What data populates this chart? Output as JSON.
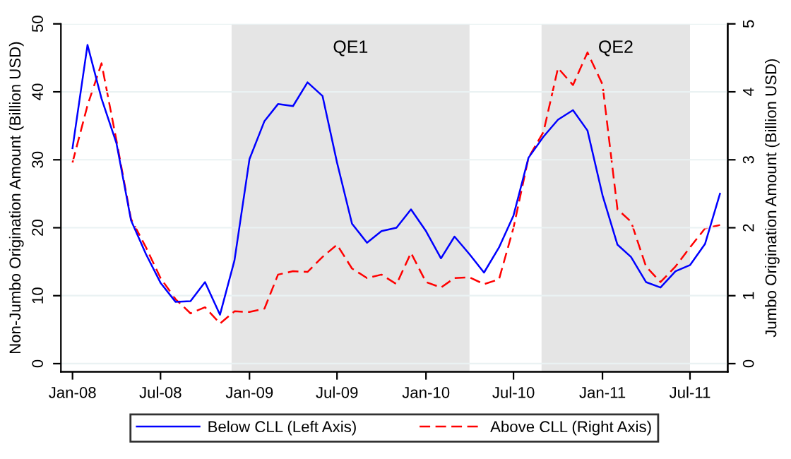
{
  "chart_data": {
    "type": "line",
    "ylabel": "Non-Jumbo Origination Amount (Billion USD)",
    "y2label": "Jumbo Origination Amount (Billion USD)",
    "x": [
      "2008-01",
      "2008-02",
      "2008-03",
      "2008-04",
      "2008-05",
      "2008-06",
      "2008-07",
      "2008-08",
      "2008-09",
      "2008-10",
      "2008-11",
      "2008-12",
      "2009-01",
      "2009-02",
      "2009-03",
      "2009-04",
      "2009-05",
      "2009-06",
      "2009-07",
      "2009-08",
      "2009-09",
      "2009-10",
      "2009-11",
      "2009-12",
      "2010-01",
      "2010-02",
      "2010-03",
      "2010-04",
      "2010-05",
      "2010-06",
      "2010-07",
      "2010-08",
      "2010-09",
      "2010-10",
      "2010-11",
      "2010-12",
      "2011-01",
      "2011-02",
      "2011-03",
      "2011-04",
      "2011-05",
      "2011-06",
      "2011-07",
      "2011-08",
      "2011-09"
    ],
    "series": [
      {
        "name": "Below CLL (Left Axis)",
        "color": "#0000ff",
        "line_style": "solid",
        "values": [
          31.7,
          46.9,
          39.0,
          32.4,
          21.1,
          16.1,
          11.9,
          9.1,
          9.2,
          12.0,
          7.2,
          15.2,
          30.1,
          35.7,
          38.2,
          37.9,
          41.4,
          39.4,
          29.6,
          20.6,
          17.8,
          19.5,
          20.0,
          22.7,
          19.5,
          15.5,
          18.7,
          16.1,
          13.4,
          17.1,
          21.8,
          30.3,
          33.4,
          35.9,
          37.3,
          34.3,
          24.8,
          17.5,
          15.7,
          12.0,
          11.2,
          13.6,
          14.5,
          17.6,
          25.0
        ]
      },
      {
        "name": "Above CLL (Right Axis)",
        "color": "#ff0000",
        "line_style": "dashed",
        "axis": "y2",
        "values": [
          2.96,
          3.8,
          4.42,
          3.28,
          2.13,
          1.71,
          1.26,
          0.95,
          0.74,
          0.83,
          0.59,
          0.77,
          0.76,
          0.81,
          1.31,
          1.36,
          1.35,
          1.57,
          1.75,
          1.4,
          1.26,
          1.31,
          1.17,
          1.63,
          1.2,
          1.12,
          1.26,
          1.27,
          1.17,
          1.24,
          2.0,
          3.03,
          3.41,
          4.35,
          4.1,
          4.58,
          4.11,
          2.27,
          2.09,
          1.43,
          1.2,
          1.43,
          1.71,
          1.99,
          2.04
        ]
      }
    ],
    "xlim": [
      "2007-12-08",
      "2011-09-17"
    ],
    "xticks": [
      {
        "value": "2008-01",
        "label": "Jan-08"
      },
      {
        "value": "2008-07",
        "label": "Jul-08"
      },
      {
        "value": "2009-01",
        "label": "Jan-09"
      },
      {
        "value": "2009-07",
        "label": "Jul-09"
      },
      {
        "value": "2010-01",
        "label": "Jan-10"
      },
      {
        "value": "2010-07",
        "label": "Jul-10"
      },
      {
        "value": "2011-01",
        "label": "Jan-11"
      },
      {
        "value": "2011-07",
        "label": "Jul-11"
      }
    ],
    "ylim": [
      -1.2,
      50
    ],
    "yticks": [
      0,
      10,
      20,
      30,
      40,
      50
    ],
    "y2lim": [
      -0.12,
      5
    ],
    "y2ticks": [
      0,
      1,
      2,
      3,
      4,
      5
    ],
    "bands": [
      {
        "axis": "x",
        "from": "2008-11-25",
        "to": "2010-04-01",
        "label": "QE1",
        "color": "#e5e5e5"
      },
      {
        "axis": "x",
        "from": "2010-08-28",
        "to": "2011-07-01",
        "label": "QE2",
        "color": "#e5e5e5"
      }
    ],
    "grid": "y",
    "legend": "bottom"
  }
}
